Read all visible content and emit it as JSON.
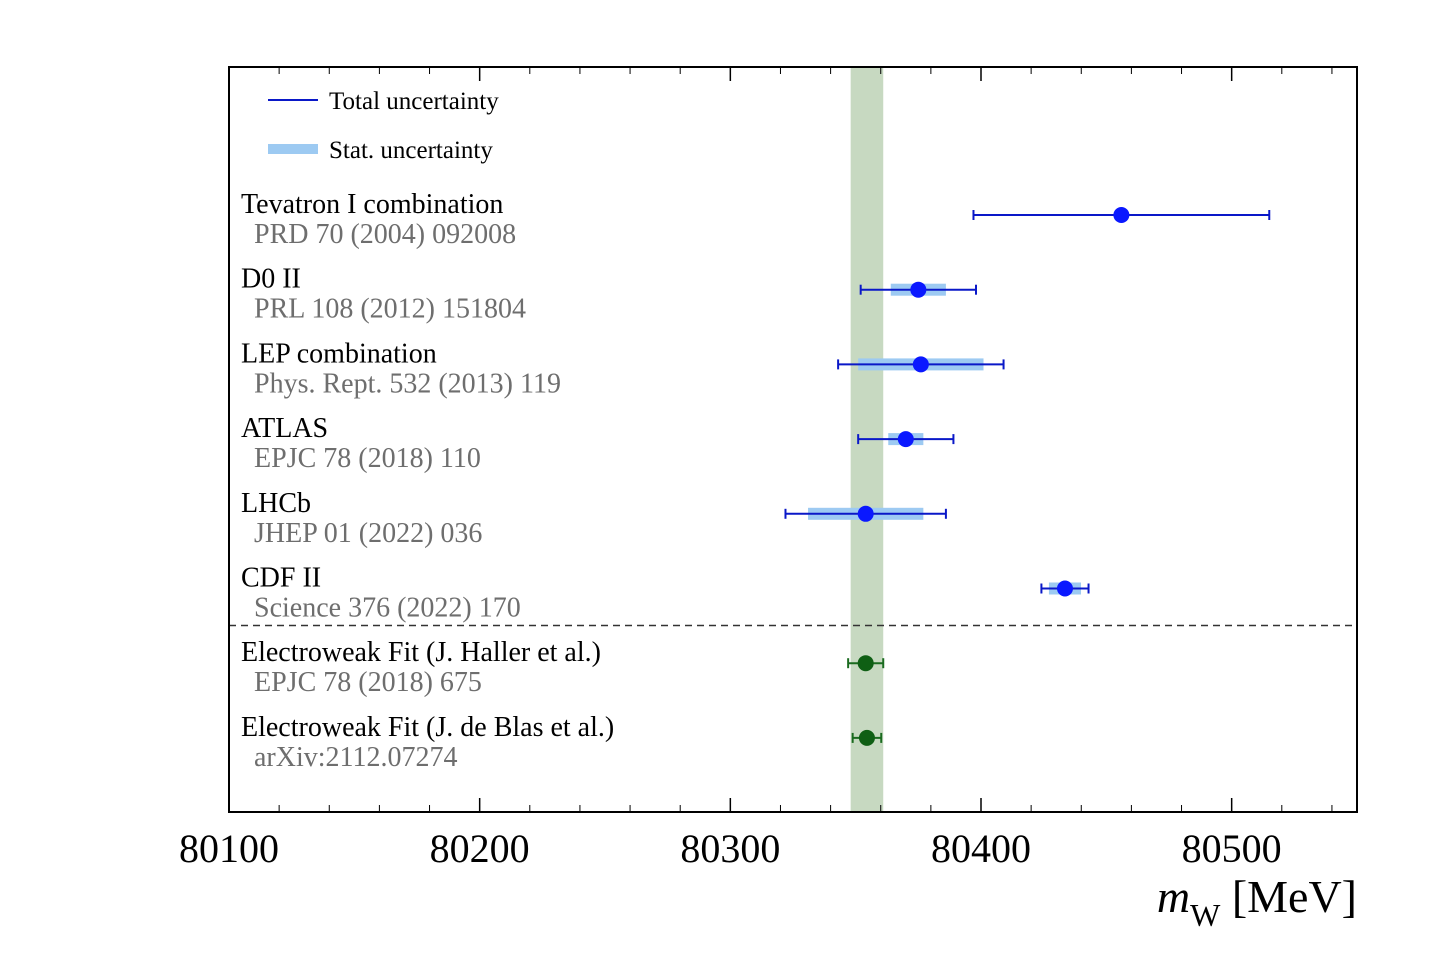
{
  "chart_data": {
    "type": "forest",
    "title": "",
    "xlabel": {
      "var": "m",
      "sub": "W",
      "unit": "[MeV]"
    },
    "xlim": [
      80100,
      80550
    ],
    "xticks": [
      80100,
      80200,
      80300,
      80400,
      80500
    ],
    "reference_band": {
      "label": "",
      "center": 80355,
      "low": 80348,
      "high": 80361,
      "color": "#c7d9c1"
    },
    "legend": {
      "position": "top-left",
      "entries": [
        {
          "label": "Total uncertainty",
          "style": "line",
          "color": "#0a18c8"
        },
        {
          "label": "Stat. uncertainty",
          "style": "band",
          "color": "#9dcaf2"
        }
      ]
    },
    "measurements": [
      {
        "name": "Tevatron I combination",
        "ref": "PRD 70 (2004) 092008",
        "value": 80456,
        "total_unc": 59,
        "stat_unc": null,
        "color": "#0a18ff"
      },
      {
        "name": "D0 II",
        "ref": "PRL 108 (2012) 151804",
        "value": 80375,
        "total_unc": 23,
        "stat_unc": 11,
        "color": "#0a18ff"
      },
      {
        "name": "LEP combination",
        "ref": "Phys. Rept. 532 (2013) 119",
        "value": 80376,
        "total_unc": 33,
        "stat_unc": 25,
        "color": "#0a18ff"
      },
      {
        "name": "ATLAS",
        "ref": "EPJC 78 (2018) 110",
        "value": 80370,
        "total_unc": 19,
        "stat_unc": 7,
        "color": "#0a18ff"
      },
      {
        "name": "LHCb",
        "ref": "JHEP 01 (2022) 036",
        "value": 80354,
        "total_unc": 32,
        "stat_unc": 23,
        "color": "#0a18ff"
      },
      {
        "name": "CDF II",
        "ref": "Science 376 (2022) 170",
        "value": 80433.5,
        "total_unc": 9.4,
        "stat_unc": 6.4,
        "color": "#0a18ff"
      },
      {
        "name": "Electroweak Fit (J. Haller et al.)",
        "ref": "EPJC 78 (2018) 675",
        "value": 80354,
        "total_unc": 7,
        "stat_unc": null,
        "color": "#0f5f14"
      },
      {
        "name": "Electroweak Fit (J. de Blas et al.)",
        "ref": "arXiv:2112.07274",
        "value": 80354.5,
        "total_unc": 5.7,
        "stat_unc": null,
        "color": "#0f5f14"
      }
    ],
    "separator_after_index": 5
  }
}
